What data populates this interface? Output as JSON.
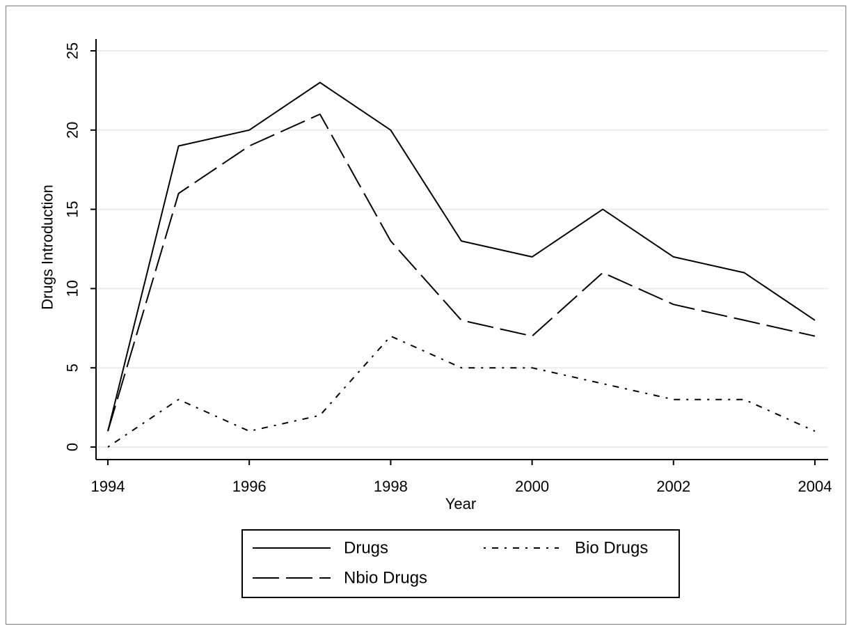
{
  "chart_data": {
    "type": "line",
    "title": "",
    "xlabel": "Year",
    "ylabel": "Drugs Introduction",
    "x": [
      1994,
      1995,
      1996,
      1997,
      1998,
      1999,
      2000,
      2001,
      2002,
      2003,
      2004
    ],
    "xticks": [
      "1994",
      "1996",
      "1998",
      "2000",
      "2002",
      "2004"
    ],
    "yticks": [
      "0",
      "5",
      "10",
      "15",
      "20",
      "25"
    ],
    "xlim": [
      1994,
      2004
    ],
    "ylim": [
      0,
      25
    ],
    "grid": true,
    "legend_position": "bottom",
    "series": [
      {
        "name": "Drugs",
        "style": "solid",
        "values": [
          1,
          19,
          20,
          23,
          20,
          13,
          12,
          15,
          12,
          11,
          8
        ]
      },
      {
        "name": "Nbio Drugs",
        "style": "dashed",
        "values": [
          1,
          16,
          19,
          21,
          13,
          8,
          7,
          11,
          9,
          8,
          7
        ]
      },
      {
        "name": "Bio Drugs",
        "style": "dashdot",
        "values": [
          0,
          3,
          1,
          2,
          7,
          5,
          5,
          4,
          3,
          3,
          1
        ]
      }
    ],
    "colors": {
      "line": "#000000",
      "grid": "#e6efef",
      "frame": "#7a7a7a"
    }
  }
}
